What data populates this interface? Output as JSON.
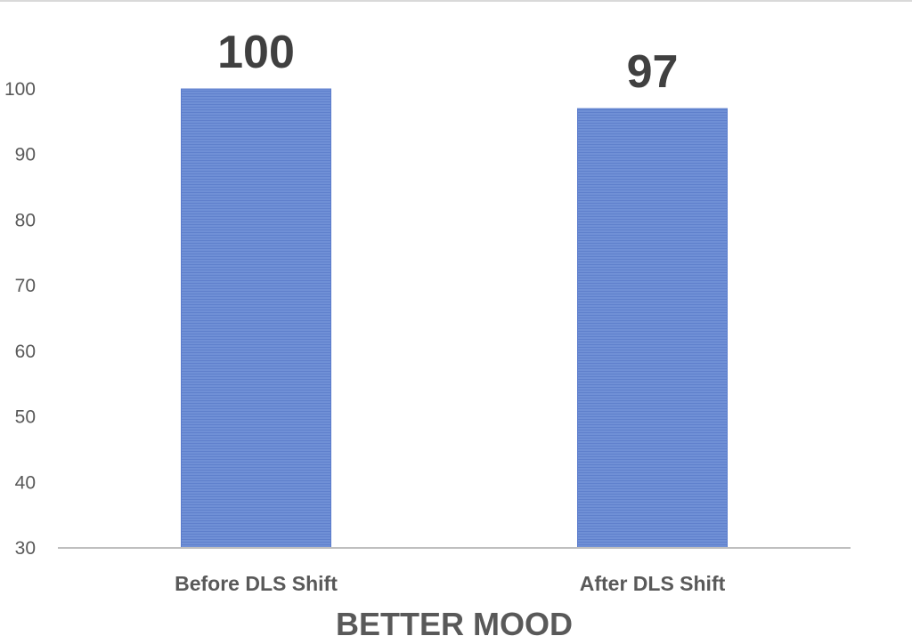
{
  "chart_data": {
    "type": "bar",
    "categories": [
      "Before DLS Shift",
      "After DLS Shift"
    ],
    "values": [
      100,
      97
    ],
    "data_labels": [
      "100",
      "97"
    ],
    "xlabel": "BETTER MOOD",
    "ylabel": "",
    "ylim": [
      30,
      100
    ],
    "yticks": [
      "30",
      "40",
      "50",
      "60",
      "70",
      "80",
      "90",
      "100"
    ],
    "grid": false,
    "bar_color": "#6f8fd4",
    "bar_edge_color": "#5b7ccc"
  }
}
